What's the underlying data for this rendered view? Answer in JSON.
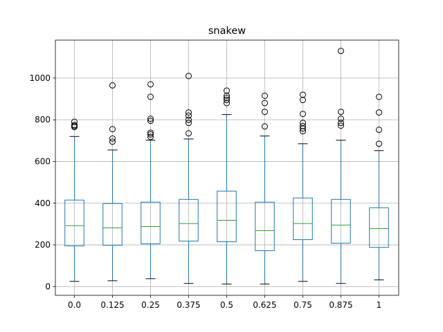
{
  "chart_data": {
    "type": "box",
    "title": "snakew",
    "xlabel": "",
    "ylabel": "",
    "categories": [
      "0.0",
      "0.125",
      "0.25",
      "0.375",
      "0.5",
      "0.625",
      "0.75",
      "0.875",
      "1"
    ],
    "ylim": [
      -42,
      1182
    ],
    "yticks": [
      0,
      200,
      400,
      600,
      800,
      1000
    ],
    "grid": true,
    "colors": {
      "box": "#1f77b4",
      "median": "#2ca02c",
      "cap": "#000000",
      "flier": "#000000",
      "grid": "#b0b0b0"
    },
    "boxes": [
      {
        "whislo": 25,
        "q1": 195,
        "med": 292,
        "q3": 415,
        "whishi": 720,
        "fliers": [
          765,
          770,
          775,
          790
        ]
      },
      {
        "whislo": 28,
        "q1": 198,
        "med": 282,
        "q3": 398,
        "whishi": 655,
        "fliers": [
          695,
          710,
          755,
          965
        ]
      },
      {
        "whislo": 38,
        "q1": 205,
        "med": 288,
        "q3": 405,
        "whishi": 702,
        "fliers": [
          718,
          730,
          738,
          795,
          805,
          910,
          970
        ]
      },
      {
        "whislo": 15,
        "q1": 218,
        "med": 302,
        "q3": 418,
        "whishi": 708,
        "fliers": [
          735,
          785,
          800,
          820,
          835,
          1010
        ]
      },
      {
        "whislo": 12,
        "q1": 215,
        "med": 318,
        "q3": 458,
        "whishi": 825,
        "fliers": [
          880,
          895,
          905,
          915,
          940
        ]
      },
      {
        "whislo": 12,
        "q1": 172,
        "med": 268,
        "q3": 405,
        "whishi": 722,
        "fliers": [
          768,
          838,
          880,
          915
        ]
      },
      {
        "whislo": 25,
        "q1": 225,
        "med": 302,
        "q3": 425,
        "whishi": 685,
        "fliers": [
          745,
          758,
          770,
          785,
          828,
          895,
          920
        ]
      },
      {
        "whislo": 15,
        "q1": 208,
        "med": 295,
        "q3": 418,
        "whishi": 702,
        "fliers": [
          772,
          785,
          805,
          838,
          1130
        ]
      },
      {
        "whislo": 32,
        "q1": 188,
        "med": 278,
        "q3": 378,
        "whishi": 652,
        "fliers": [
          685,
          752,
          835,
          910
        ]
      }
    ]
  }
}
